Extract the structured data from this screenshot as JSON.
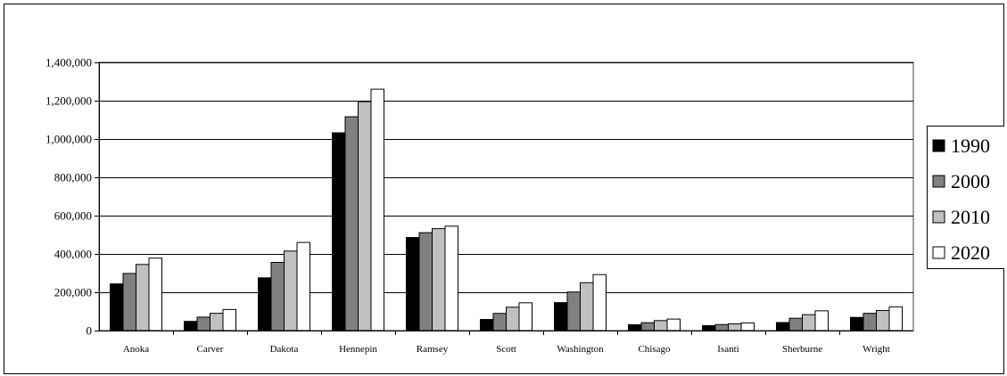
{
  "chart_data": {
    "type": "bar",
    "title": "",
    "xlabel": "",
    "ylabel": "",
    "categories": [
      "Anoka",
      "Carver",
      "Dakota",
      "Hennepin",
      "Ramsey",
      "Scott",
      "Washington",
      "Chisago",
      "Isanti",
      "Sherburne",
      "Wright"
    ],
    "series": [
      {
        "name": "1990",
        "color": "#000000",
        "values": [
          243641,
          47915,
          275227,
          1032431,
          485765,
          57846,
          145896,
          30521,
          25921,
          41945,
          68710
        ]
      },
      {
        "name": "2000",
        "color": "#808080",
        "values": [
          298084,
          70205,
          355904,
          1116200,
          511035,
          89498,
          201130,
          41101,
          31287,
          64417,
          89986
        ]
      },
      {
        "name": "2010",
        "color": "#c0c0c0",
        "values": [
          345000,
          90000,
          415000,
          1195000,
          532000,
          122000,
          250000,
          52000,
          35000,
          83000,
          105000
        ]
      },
      {
        "name": "2020",
        "color": "#ffffff",
        "values": [
          378000,
          110000,
          460000,
          1260000,
          545000,
          145000,
          292000,
          60000,
          40000,
          103000,
          124000
        ]
      }
    ],
    "ylim": [
      0,
      1400000
    ],
    "yticks": [
      0,
      200000,
      400000,
      600000,
      800000,
      1000000,
      1200000,
      1400000
    ],
    "ytick_labels": [
      "0",
      "200,000",
      "400,000",
      "600,000",
      "800,000",
      "1,000,000",
      "1,200,000",
      "1,400,000"
    ],
    "grid": true,
    "legend_position": "right"
  }
}
